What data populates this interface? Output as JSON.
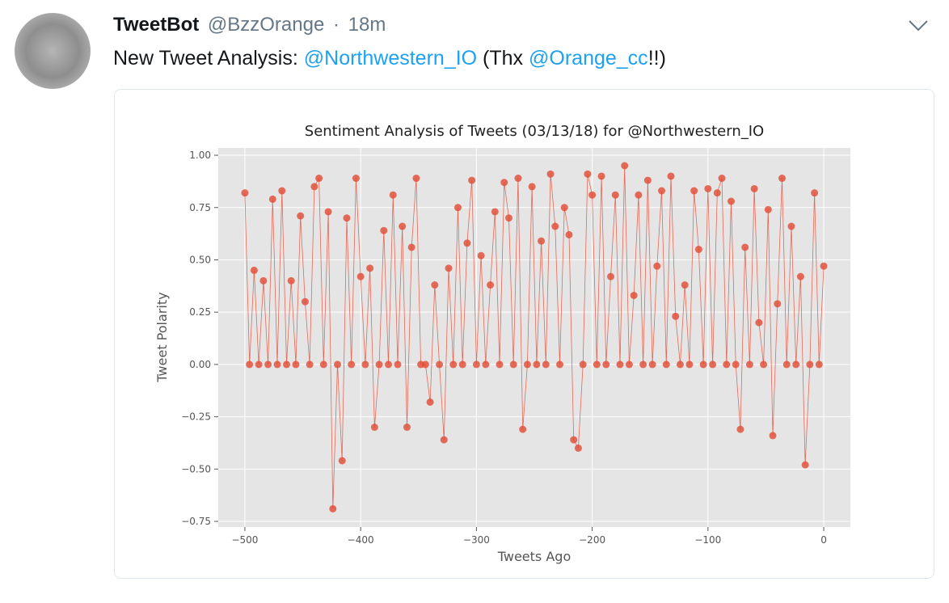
{
  "tweet": {
    "author": "TweetBot",
    "handle": "@BzzOrange",
    "separator": "·",
    "time": "18m",
    "text": [
      "New Tweet Analysis: ",
      "@Northwestern_IO",
      " (Thx ",
      "@Orange_cc",
      "!!)"
    ]
  },
  "chart_data": {
    "type": "line",
    "title": "Sentiment Analysis of Tweets (03/13/18) for @Northwestern_IO",
    "x_label": "Tweets Ago",
    "y_label": "Tweet Polarity",
    "x": [
      -500,
      -496,
      -492,
      -488,
      -484,
      -480,
      -476,
      -472,
      -468,
      -464,
      -460,
      -456,
      -452,
      -448,
      -444,
      -440,
      -436,
      -432,
      -428,
      -424,
      -420,
      -416,
      -412,
      -408,
      -404,
      -400,
      -396,
      -392,
      -388,
      -384,
      -380,
      -376,
      -372,
      -368,
      -364,
      -360,
      -356,
      -352,
      -348,
      -344,
      -340,
      -336,
      -332,
      -328,
      -324,
      -320,
      -316,
      -312,
      -308,
      -304,
      -300,
      -296,
      -292,
      -288,
      -284,
      -280,
      -276,
      -272,
      -268,
      -264,
      -260,
      -256,
      -252,
      -248,
      -244,
      -240,
      -236,
      -232,
      -228,
      -224,
      -220,
      -216,
      -212,
      -208,
      -204,
      -200,
      -196,
      -192,
      -188,
      -184,
      -180,
      -176,
      -172,
      -168,
      -164,
      -160,
      -156,
      -152,
      -148,
      -144,
      -140,
      -136,
      -132,
      -128,
      -124,
      -120,
      -116,
      -112,
      -108,
      -104,
      -100,
      -96,
      -92,
      -88,
      -84,
      -80,
      -76,
      -72,
      -68,
      -64,
      -60,
      -56,
      -52,
      -48,
      -44,
      -40,
      -36,
      -32,
      -28,
      -24,
      -20,
      -16,
      -12,
      -8,
      -4,
      0
    ],
    "series": [
      {
        "color": "#e24a33",
        "values": [
          0.82,
          0,
          0.45,
          0,
          0.4,
          0,
          0.79,
          0,
          0.83,
          0,
          0.4,
          0,
          0.71,
          0.3,
          0,
          0.85,
          0.89,
          0,
          0.73,
          -0.69,
          0,
          -0.46,
          0.7,
          0,
          0.89,
          0.42,
          0,
          0.46,
          -0.3,
          0,
          0.64,
          0,
          0.81,
          0,
          0.66,
          -0.3,
          0.56,
          0.89,
          0,
          0,
          -0.18,
          0.38,
          0,
          -0.36,
          0.46,
          0,
          0.75,
          0,
          0.58,
          0.88,
          0,
          0.52,
          0,
          0.38,
          0.73,
          0,
          0.87,
          0.7,
          0,
          0.89,
          -0.31,
          0,
          0.85,
          0,
          0.59,
          0,
          0.91,
          0.66,
          0,
          0.75,
          0.62,
          -0.36,
          -0.4,
          0,
          0.91,
          0.81,
          0,
          0.9,
          0,
          0.42,
          0.81,
          0,
          0.95,
          0,
          0.33,
          0.81,
          0,
          0.88,
          0,
          0.47,
          0.83,
          0,
          0.9,
          0.23,
          0,
          0.38,
          0,
          0.83,
          0.55,
          0,
          0.84,
          0,
          0.82,
          0.89,
          0,
          0.78,
          0,
          -0.31,
          0.56,
          0,
          0.84,
          0.2,
          0,
          0.74,
          -0.34,
          0.29,
          0.89,
          0,
          0.66,
          0,
          0.42,
          -0.48,
          0,
          0.82,
          0,
          0.47
        ]
      }
    ],
    "xlim": [
      -523,
      23
    ],
    "ylim": [
      -0.777,
      1.035
    ],
    "xticks": [
      {
        "value": -500,
        "label": "−500"
      },
      {
        "value": -400,
        "label": "−400"
      },
      {
        "value": -300,
        "label": "−300"
      },
      {
        "value": -200,
        "label": "−200"
      },
      {
        "value": -100,
        "label": "−100"
      },
      0
    ],
    "yticks": [
      {
        "value": -0.75,
        "label": "−0.75"
      },
      {
        "value": -0.5,
        "label": "−0.50"
      },
      {
        "value": -0.25,
        "label": "−0.25"
      },
      {
        "value": 0,
        "label": "0.00"
      },
      0.25,
      {
        "value": 0.5,
        "label": "0.50"
      },
      0.75,
      {
        "value": 1,
        "label": "1.00"
      }
    ],
    "grid": true
  }
}
